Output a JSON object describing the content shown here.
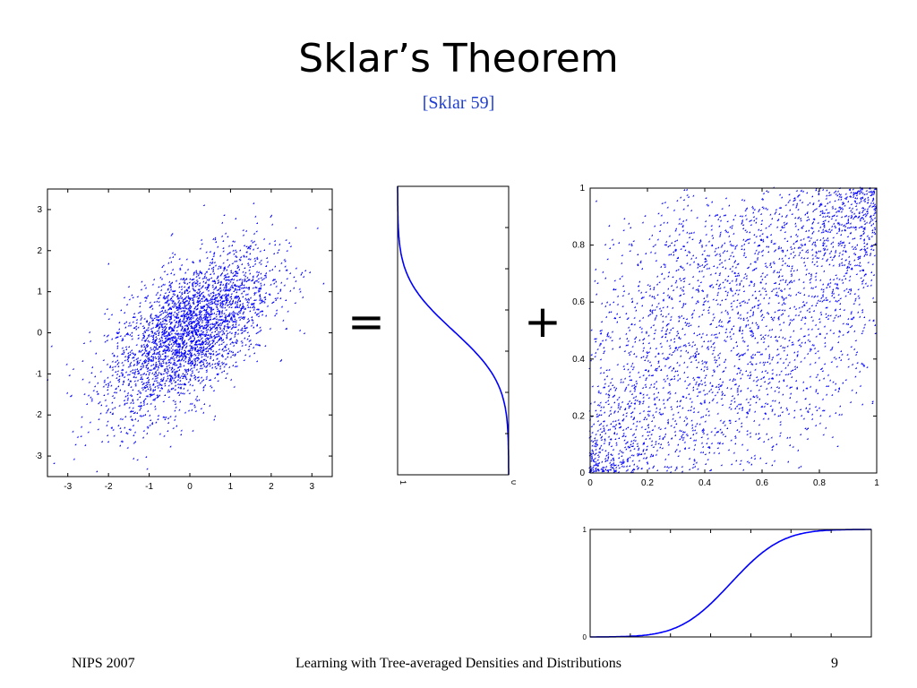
{
  "slide": {
    "title": "Sklar’s Theorem",
    "subtitle": "[Sklar 59]",
    "equals_sign": "=",
    "plus_sign": "+"
  },
  "footer": {
    "left": "NIPS 2007",
    "center": "Learning with Tree-averaged Densities and Distributions",
    "page_number": "9"
  },
  "colors": {
    "points": "#0000ff",
    "subtitle": "#1f3fd0",
    "axes": "#000000"
  },
  "chart_data": [
    {
      "id": "joint",
      "type": "scatter",
      "xlim": [
        -3.5,
        3.5
      ],
      "ylim": [
        -3.5,
        3.5
      ],
      "xticks": [
        -3,
        -2,
        -1,
        0,
        1,
        2,
        3
      ],
      "yticks": [
        -3,
        -2,
        -1,
        0,
        1,
        2,
        3
      ],
      "correlation": 0.6,
      "n_points": 3000
    },
    {
      "id": "marginal-vertical",
      "type": "line",
      "xlim": [
        1,
        0
      ],
      "ylim": [
        -3.5,
        3.5
      ],
      "xticks": [
        1,
        0
      ],
      "curve": "normal CDF"
    },
    {
      "id": "copula",
      "type": "scatter",
      "xlim": [
        0,
        1
      ],
      "ylim": [
        0,
        1
      ],
      "xticks": [
        0,
        0.2,
        0.4,
        0.6,
        0.8,
        1
      ],
      "yticks": [
        0,
        0.2,
        0.4,
        0.6,
        0.8,
        1
      ],
      "correlation": 0.6,
      "n_points": 3000
    },
    {
      "id": "marginal-horizontal",
      "type": "line",
      "xlim": [
        -3.5,
        3.5
      ],
      "ylim": [
        0,
        1
      ],
      "yticks": [
        0,
        1
      ],
      "curve": "normal CDF"
    }
  ]
}
